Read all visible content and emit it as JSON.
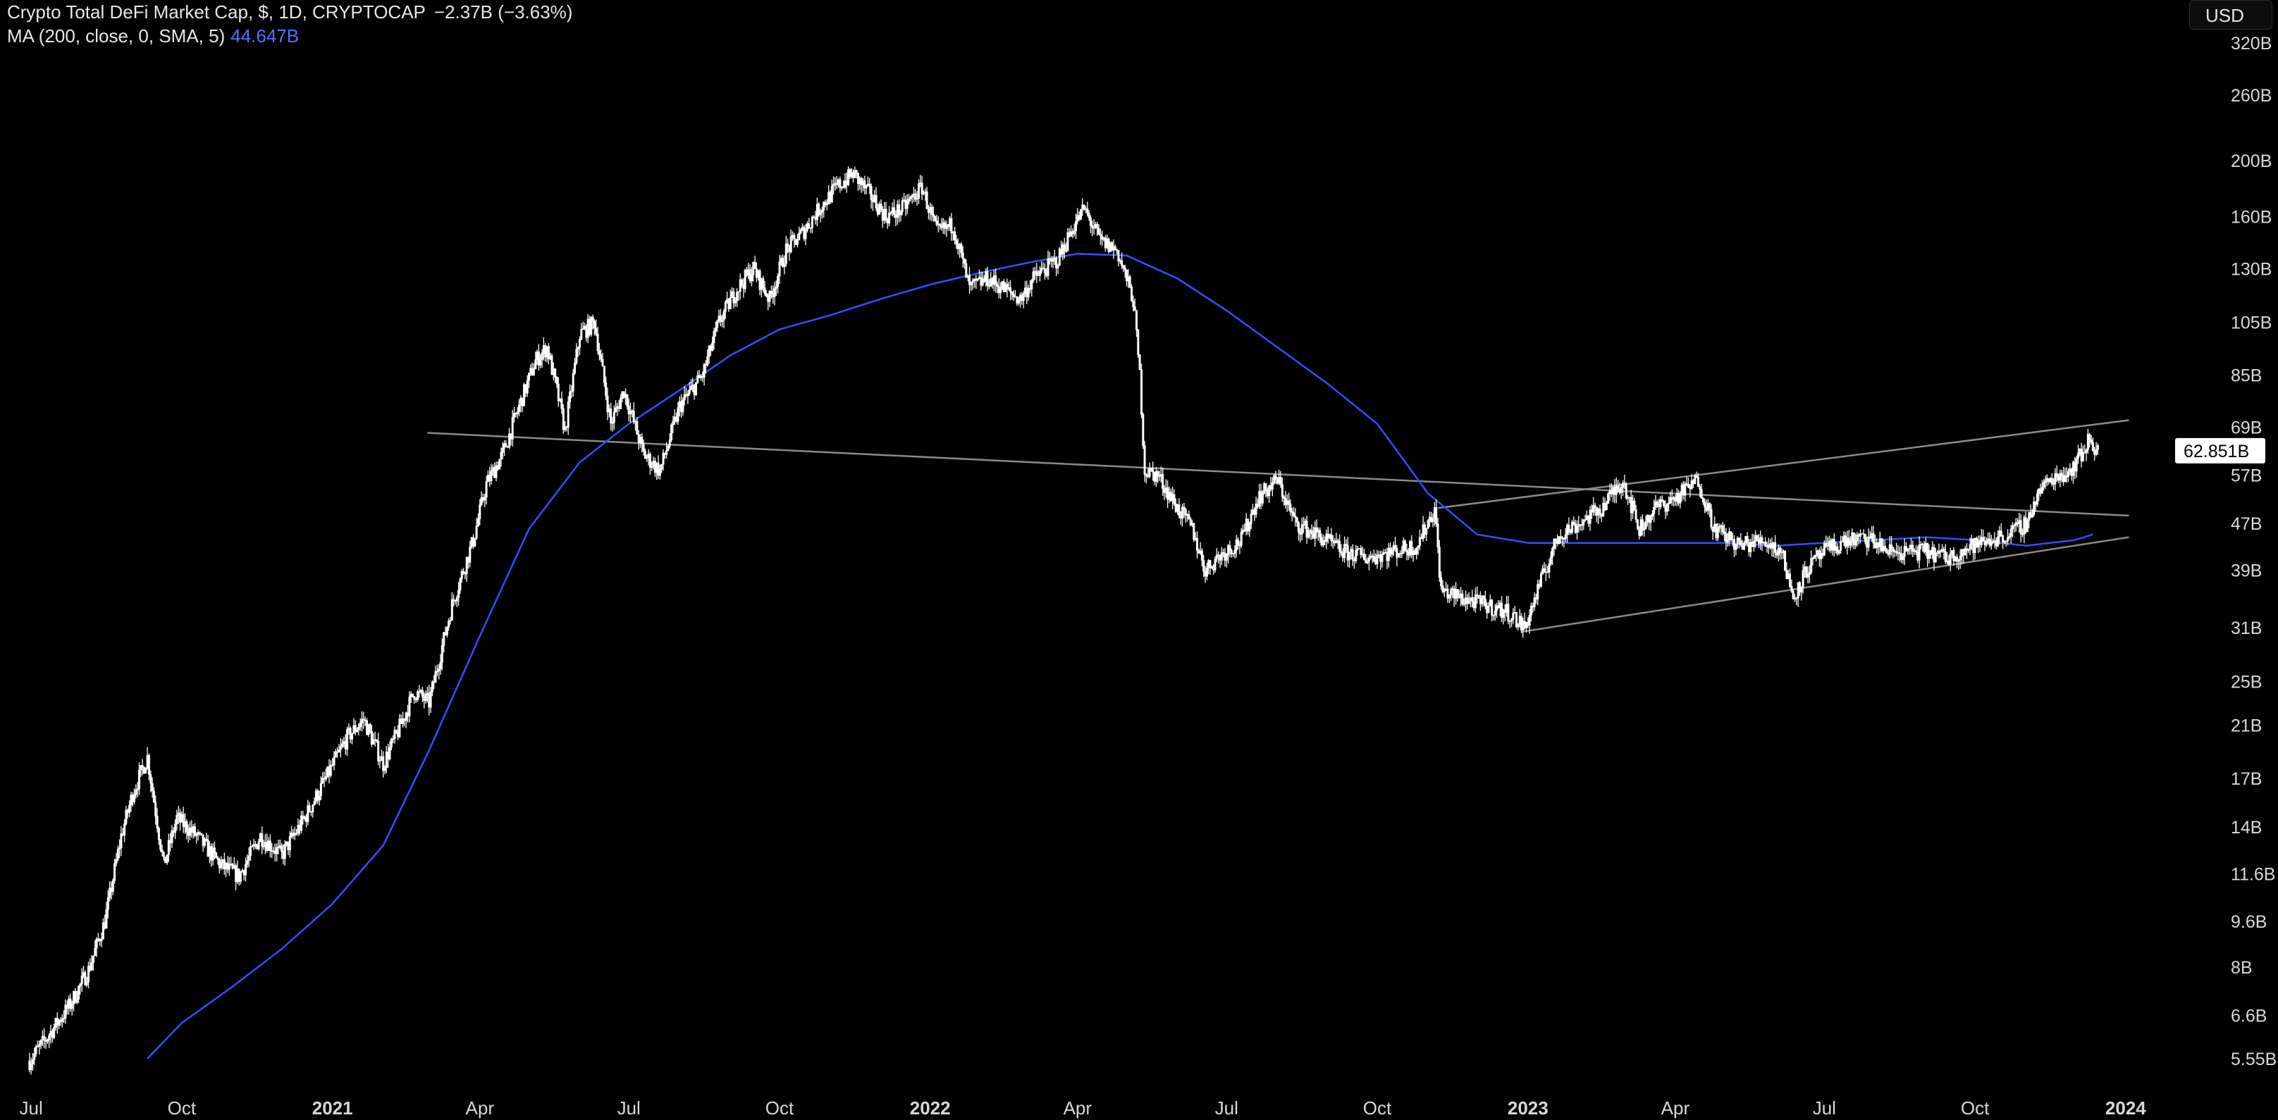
{
  "header": {
    "title": "Crypto Total DeFi Market Cap, $, 1D, CRYPTOCAP",
    "change": "−2.37B (−3.63%)",
    "ma_label": "MA (200, close, 0, SMA, 5)",
    "ma_value": "44.647B",
    "currency": "USD",
    "last_price_label": "62.851B"
  },
  "colors": {
    "background": "#000000",
    "candles": "#ffffff",
    "ma": "#3a4bff",
    "trendlines": "#8a8a8a",
    "axis_text": "#d8d8d8"
  },
  "chart_data": {
    "type": "line",
    "scale": "log",
    "grid": false,
    "ylim": [
      5.0,
      380
    ],
    "xlim": [
      "2020-06-12",
      "2024-01-20"
    ],
    "y_ticks": [
      {
        "label": "320B",
        "value": 320
      },
      {
        "label": "260B",
        "value": 260
      },
      {
        "label": "200B",
        "value": 200
      },
      {
        "label": "160B",
        "value": 160
      },
      {
        "label": "130B",
        "value": 130
      },
      {
        "label": "105B",
        "value": 105
      },
      {
        "label": "85B",
        "value": 85
      },
      {
        "label": "69B",
        "value": 69
      },
      {
        "label": "57B",
        "value": 57
      },
      {
        "label": "47B",
        "value": 47
      },
      {
        "label": "39B",
        "value": 39
      },
      {
        "label": "31B",
        "value": 31
      },
      {
        "label": "25B",
        "value": 25
      },
      {
        "label": "21B",
        "value": 21
      },
      {
        "label": "17B",
        "value": 17
      },
      {
        "label": "14B",
        "value": 14
      },
      {
        "label": "11.6B",
        "value": 11.6
      },
      {
        "label": "9.6B",
        "value": 9.6
      },
      {
        "label": "8B",
        "value": 8
      },
      {
        "label": "6.6B",
        "value": 6.6
      },
      {
        "label": "5.55B",
        "value": 5.55
      }
    ],
    "x_ticks": [
      {
        "label": "Jul",
        "date": "2020-07-01",
        "bold": false
      },
      {
        "label": "Oct",
        "date": "2020-10-01",
        "bold": false
      },
      {
        "label": "2021",
        "date": "2021-01-01",
        "bold": true
      },
      {
        "label": "Apr",
        "date": "2021-04-01",
        "bold": false
      },
      {
        "label": "Jul",
        "date": "2021-07-01",
        "bold": false
      },
      {
        "label": "Oct",
        "date": "2021-10-01",
        "bold": false
      },
      {
        "label": "2022",
        "date": "2022-01-01",
        "bold": true
      },
      {
        "label": "Apr",
        "date": "2022-04-01",
        "bold": false
      },
      {
        "label": "Jul",
        "date": "2022-07-01",
        "bold": false
      },
      {
        "label": "Oct",
        "date": "2022-10-01",
        "bold": false
      },
      {
        "label": "2023",
        "date": "2023-01-01",
        "bold": true
      },
      {
        "label": "Apr",
        "date": "2023-04-01",
        "bold": false
      },
      {
        "label": "Jul",
        "date": "2023-07-01",
        "bold": false
      },
      {
        "label": "Oct",
        "date": "2023-10-01",
        "bold": false
      },
      {
        "label": "2024",
        "date": "2024-01-01",
        "bold": true
      }
    ],
    "last_price": 62.851,
    "series": [
      {
        "kind": "price",
        "x": [
          "2020-06-30",
          "2020-07-10",
          "2020-07-25",
          "2020-08-05",
          "2020-08-15",
          "2020-08-25",
          "2020-09-01",
          "2020-09-10",
          "2020-09-20",
          "2020-09-28",
          "2020-10-10",
          "2020-10-25",
          "2020-11-05",
          "2020-11-18",
          "2020-12-01",
          "2020-12-15",
          "2020-12-28",
          "2021-01-10",
          "2021-01-20",
          "2021-02-01",
          "2021-02-10",
          "2021-02-20",
          "2021-03-01",
          "2021-03-15",
          "2021-03-28",
          "2021-04-05",
          "2021-04-15",
          "2021-04-25",
          "2021-05-05",
          "2021-05-12",
          "2021-05-18",
          "2021-05-23",
          "2021-06-01",
          "2021-06-10",
          "2021-06-20",
          "2021-06-28",
          "2021-07-10",
          "2021-07-20",
          "2021-08-01",
          "2021-08-15",
          "2021-08-25",
          "2021-09-05",
          "2021-09-15",
          "2021-09-25",
          "2021-10-05",
          "2021-10-15",
          "2021-10-25",
          "2021-11-05",
          "2021-11-15",
          "2021-11-25",
          "2021-12-05",
          "2021-12-15",
          "2021-12-27",
          "2022-01-05",
          "2022-01-15",
          "2022-01-25",
          "2022-02-05",
          "2022-02-15",
          "2022-02-25",
          "2022-03-05",
          "2022-03-20",
          "2022-03-30",
          "2022-04-05",
          "2022-04-15",
          "2022-04-25",
          "2022-05-05",
          "2022-05-09",
          "2022-05-12",
          "2022-05-20",
          "2022-06-01",
          "2022-06-10",
          "2022-06-18",
          "2022-06-25",
          "2022-07-10",
          "2022-07-20",
          "2022-08-01",
          "2022-08-12",
          "2022-08-25",
          "2022-09-10",
          "2022-09-25",
          "2022-10-10",
          "2022-10-25",
          "2022-11-05",
          "2022-11-09",
          "2022-11-20",
          "2022-12-05",
          "2022-12-20",
          "2022-12-30",
          "2023-01-10",
          "2023-01-20",
          "2023-02-01",
          "2023-02-15",
          "2023-02-28",
          "2023-03-10",
          "2023-03-20",
          "2023-04-01",
          "2023-04-15",
          "2023-04-25",
          "2023-05-10",
          "2023-05-25",
          "2023-06-05",
          "2023-06-12",
          "2023-06-20",
          "2023-07-01",
          "2023-07-15",
          "2023-07-30",
          "2023-08-10",
          "2023-08-18",
          "2023-09-01",
          "2023-09-15",
          "2023-09-30",
          "2023-10-10",
          "2023-10-22",
          "2023-11-01",
          "2023-11-10",
          "2023-11-20",
          "2023-11-28",
          "2023-12-05",
          "2023-12-10",
          "2023-12-15"
        ],
        "y": [
          5.5,
          6.0,
          6.9,
          7.9,
          9.6,
          13.5,
          16.0,
          18.5,
          12.0,
          14.5,
          13.5,
          12.0,
          11.5,
          13.5,
          12.5,
          14.5,
          17.0,
          20.0,
          21.5,
          18.0,
          20.5,
          24.0,
          23.0,
          34.0,
          44.0,
          55.0,
          62.0,
          75.0,
          90.0,
          95.0,
          80.0,
          68.0,
          100.0,
          105.0,
          70.0,
          80.0,
          62.0,
          58.0,
          75.0,
          85.0,
          105.0,
          120.0,
          130.0,
          115.0,
          140.0,
          150.0,
          165.0,
          180.0,
          190.0,
          175.0,
          160.0,
          165.0,
          180.0,
          150.0,
          155.0,
          120.0,
          125.0,
          120.0,
          115.0,
          125.0,
          135.0,
          155.0,
          165.0,
          145.0,
          140.0,
          115.0,
          85.0,
          58.0,
          57.0,
          50.0,
          46.0,
          39.0,
          41.0,
          44.0,
          52.0,
          56.0,
          47.0,
          45.0,
          42.0,
          41.0,
          42.0,
          43.0,
          50.0,
          36.0,
          35.0,
          34.0,
          33.0,
          31.0,
          38.0,
          45.0,
          47.0,
          50.0,
          56.0,
          46.0,
          50.0,
          52.0,
          56.0,
          46.0,
          43.0,
          44.0,
          42.0,
          35.0,
          39.0,
          42.0,
          44.0,
          44.0,
          42.0,
          42.0,
          42.0,
          41.0,
          43.0,
          44.0,
          45.0,
          47.0,
          54.0,
          57.0,
          58.0,
          62.0,
          66.0,
          62.851
        ]
      },
      {
        "kind": "ma",
        "x": [
          "2020-09-10",
          "2020-10-01",
          "2020-11-01",
          "2020-12-01",
          "2021-01-01",
          "2021-02-01",
          "2021-03-01",
          "2021-04-01",
          "2021-05-01",
          "2021-06-01",
          "2021-07-01",
          "2021-08-01",
          "2021-09-01",
          "2021-10-01",
          "2021-11-01",
          "2021-12-01",
          "2022-01-01",
          "2022-02-01",
          "2022-03-01",
          "2022-04-01",
          "2022-05-01",
          "2022-06-01",
          "2022-07-01",
          "2022-08-01",
          "2022-09-01",
          "2022-10-01",
          "2022-11-01",
          "2022-12-01",
          "2023-01-01",
          "2023-02-01",
          "2023-03-01",
          "2023-04-01",
          "2023-05-01",
          "2023-06-01",
          "2023-07-01",
          "2023-08-01",
          "2023-09-01",
          "2023-10-01",
          "2023-11-01",
          "2023-12-01",
          "2023-12-12"
        ],
        "y": [
          5.55,
          6.4,
          7.4,
          8.6,
          10.3,
          13.0,
          19.0,
          30.0,
          46.0,
          60.0,
          70.0,
          80.0,
          92.0,
          102.0,
          108.0,
          115.0,
          122.0,
          128.0,
          133.0,
          138.0,
          137.0,
          125.0,
          110.0,
          95.0,
          82.0,
          70.0,
          53.0,
          45.0,
          43.5,
          43.5,
          43.5,
          43.5,
          43.5,
          43.0,
          43.5,
          44.0,
          44.5,
          44.0,
          43.0,
          44.0,
          45.0
        ]
      }
    ],
    "trendlines": [
      {
        "x": [
          "2021-02-28",
          "2024-01-03"
        ],
        "y": [
          67.5,
          48.5
        ]
      },
      {
        "x": [
          "2022-11-07",
          "2024-01-03"
        ],
        "y": [
          50.0,
          71.0
        ]
      },
      {
        "x": [
          "2022-12-28",
          "2024-01-03"
        ],
        "y": [
          30.5,
          44.5
        ]
      }
    ]
  }
}
